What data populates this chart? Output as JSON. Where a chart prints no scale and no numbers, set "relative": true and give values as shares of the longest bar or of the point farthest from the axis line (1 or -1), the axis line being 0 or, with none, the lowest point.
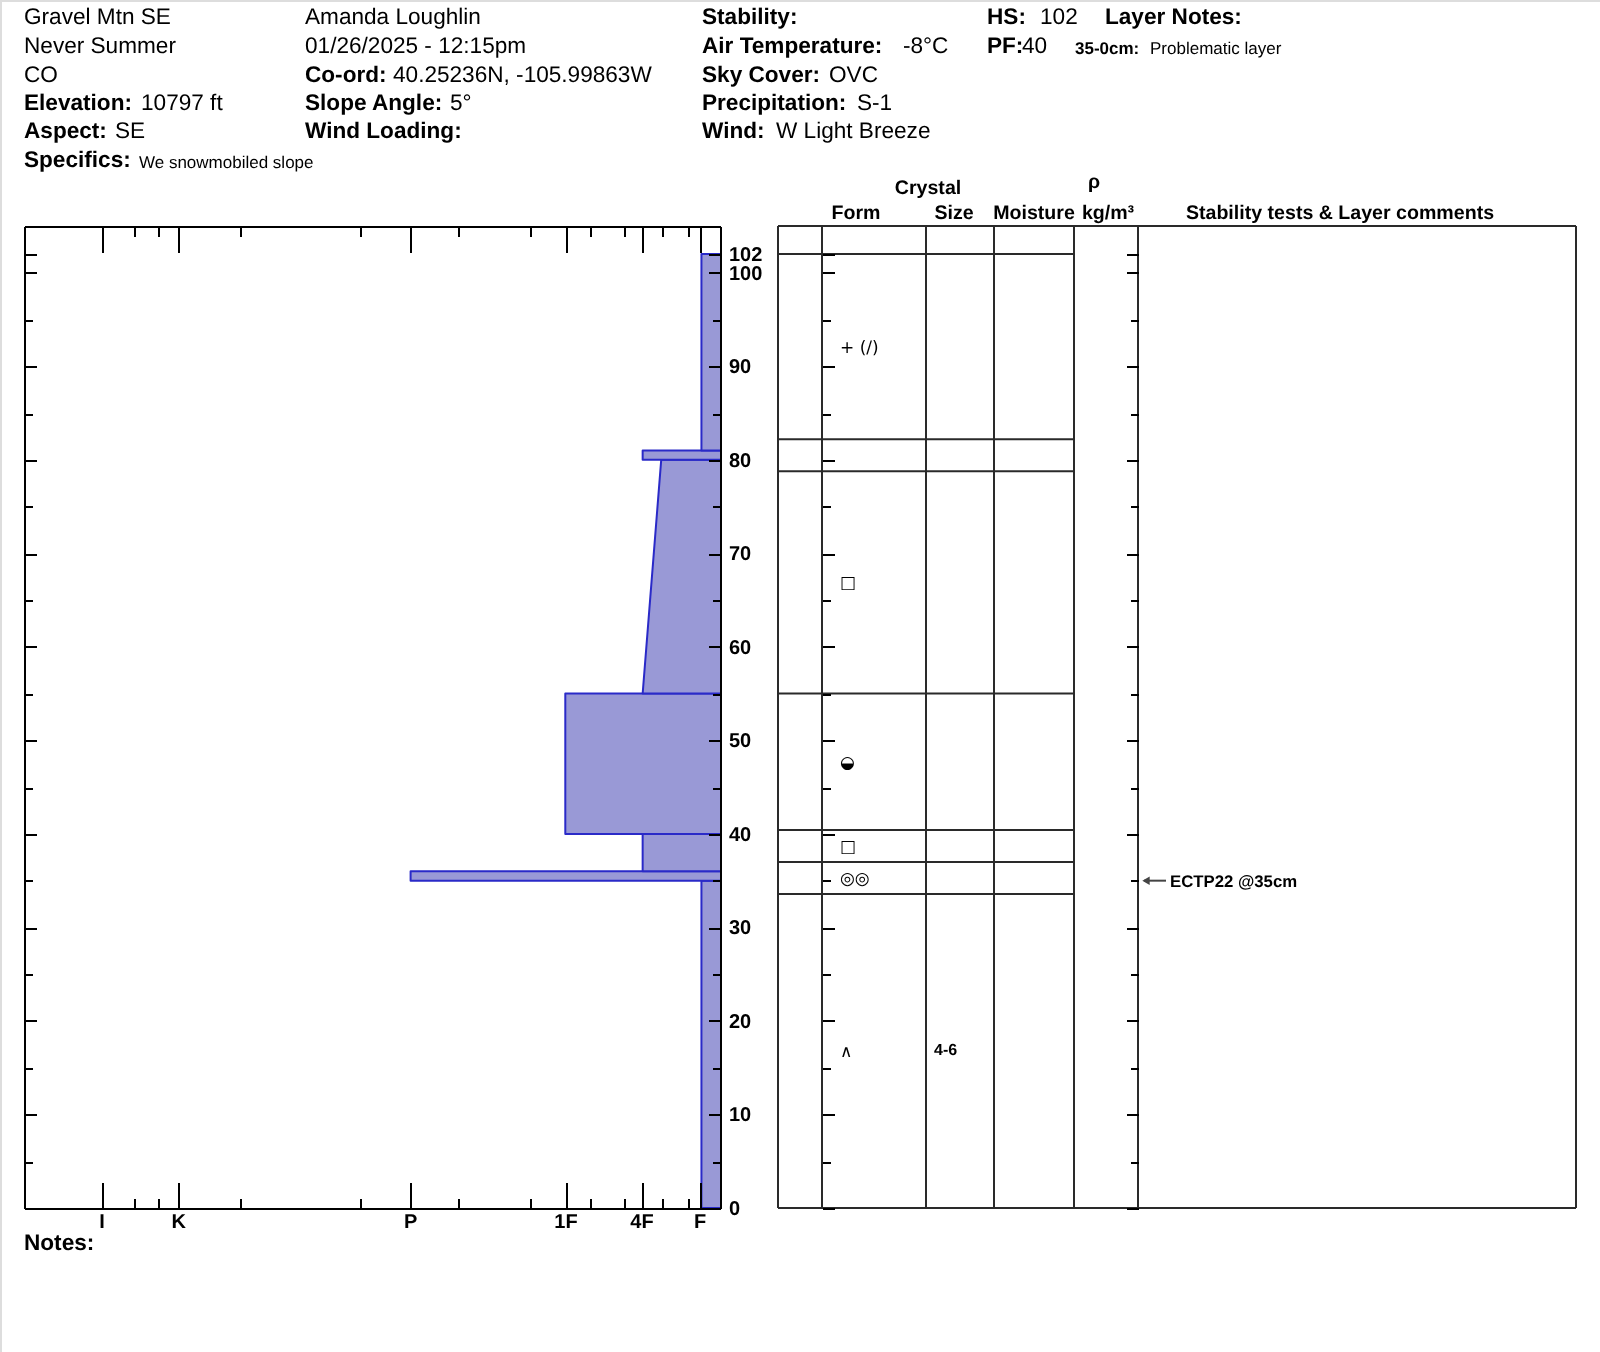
{
  "chart_data": {
    "type": "area",
    "orientation": "horizontal",
    "relative": true,
    "series": [
      {
        "color": "#9999d6",
        "x": [
          0,
          35
        ],
        "values": [
          -0.06,
          -0.06
        ]
      },
      {
        "color": "#9999d6",
        "x": [
          35,
          36
        ],
        "values": [
          -1,
          -1
        ]
      },
      {
        "color": "#9999d6",
        "x": [
          36,
          40
        ],
        "values": [
          -0.25,
          -0.25
        ]
      },
      {
        "color": "#9999d6",
        "x": [
          40,
          55
        ],
        "values": [
          -0.5,
          -0.5
        ]
      },
      {
        "color": "#9999d6",
        "x": [
          55,
          80
        ],
        "values": [
          -0.25,
          -0.19
        ]
      },
      {
        "color": "#9999d6",
        "x": [
          80,
          81
        ],
        "values": [
          -0.25,
          -0.25
        ]
      },
      {
        "color": "#9999d6",
        "x": [
          81,
          102
        ],
        "values": [
          -0.06,
          -0.06
        ]
      }
    ],
    "ylim": [
      0,
      105
    ],
    "yticks": [
      0,
      {
        "value": 5,
        "label": null
      },
      10,
      {
        "value": 15,
        "label": null
      },
      20,
      {
        "value": 25,
        "label": null
      },
      30,
      {
        "value": 35,
        "label": null
      },
      40,
      {
        "value": 45,
        "label": null
      },
      50,
      {
        "value": 55,
        "label": null
      },
      60,
      {
        "value": 65,
        "label": null
      },
      70,
      {
        "value": 75,
        "label": null
      },
      80,
      {
        "value": 85,
        "label": null
      },
      90,
      {
        "value": 95,
        "label": null
      },
      100,
      102
    ],
    "annotations": [
      "Gravel Mtn SE",
      "Never Summer",
      "CO",
      "Elevation:",
      "10797 ft",
      "Aspect:",
      "SE",
      "Specifics:",
      "We snowmobiled slope",
      "Amanda Loughlin",
      "01/26/2025 - 12:15pm",
      "Co-ord:",
      "40.25236N, -105.99863W",
      "Slope Angle:",
      "5°",
      "Wind Loading:",
      "Stability:",
      "Air Temperature:",
      "-8°C",
      "Sky Cover:",
      "OVC",
      "Precipitation:",
      "S-1",
      "Wind:",
      "W Light Breeze",
      "HS:",
      "102",
      "PF:",
      "40",
      "Layer Notes:",
      "35-0cm:",
      "Problematic layer",
      "Notes:",
      "Crystal",
      "ρ",
      "Form",
      "Size",
      "Moisture",
      "kg/m³",
      "Stability tests & Layer comments",
      "I",
      "K",
      "P",
      "1F",
      "4F",
      "F",
      "+ (/)",
      "□",
      "◒",
      "□",
      "◎◎",
      "∧",
      "4-6",
      "ECTP22 @35cm"
    ]
  }
}
